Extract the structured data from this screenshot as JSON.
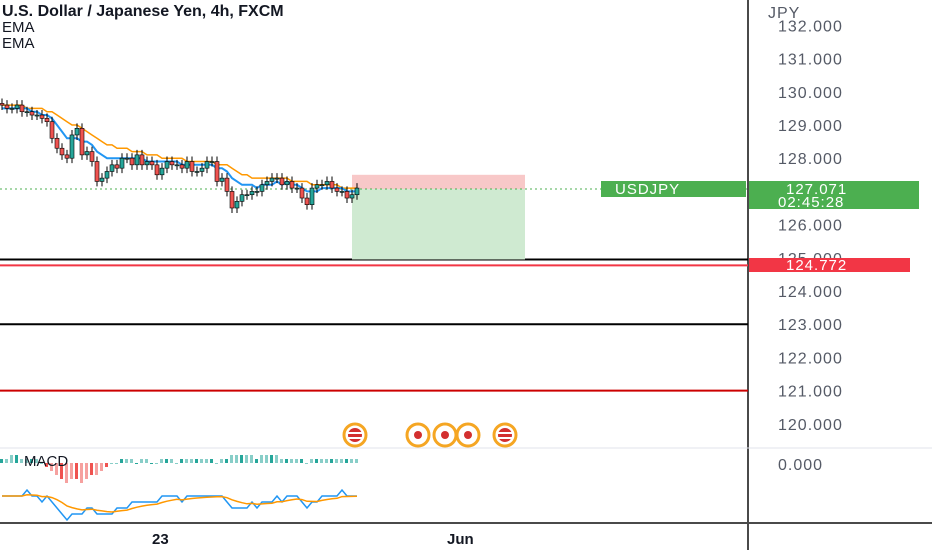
{
  "header": {
    "title": "U.S. Dollar / Japanese Yen, 4h, FXCM",
    "indicators": [
      "EMA",
      "EMA"
    ]
  },
  "price_axis": {
    "currency": "JPY",
    "ticks": [
      "132.000",
      "131.000",
      "130.000",
      "129.000",
      "128.000",
      "126.000",
      "125.000",
      "124.000",
      "123.000",
      "122.000",
      "121.000",
      "120.000"
    ],
    "macd_tick": "0.000"
  },
  "time_axis": {
    "labels": [
      "23",
      "Jun"
    ]
  },
  "current_price": {
    "symbol": "USDJPY",
    "price": "127.071",
    "countdown": "02:45:28",
    "color": "#4caf50"
  },
  "alert_line": {
    "price": "124.772",
    "color": "#f23645"
  },
  "macd": {
    "label": "MACD"
  },
  "chart_data": {
    "type": "candlestick",
    "symbol": "USD/JPY",
    "timeframe": "4h",
    "ylim": [
      119.5,
      132.3
    ],
    "horizontal_lines": [
      {
        "price": 124.95,
        "color": "#000000"
      },
      {
        "price": 124.772,
        "color": "#f23645"
      },
      {
        "price": 123.0,
        "color": "#000000"
      },
      {
        "price": 121.0,
        "color": "#cc0000"
      }
    ],
    "position": {
      "type": "short",
      "entry": 127.07,
      "stop": 127.5,
      "target": 124.95
    },
    "closes": [
      129.6,
      129.5,
      129.5,
      129.6,
      129.4,
      129.4,
      129.3,
      129.3,
      129.2,
      129.1,
      128.6,
      128.3,
      128.1,
      128.0,
      128.7,
      128.9,
      128.1,
      128.2,
      127.9,
      127.3,
      127.4,
      127.6,
      127.8,
      127.7,
      128.0,
      128.0,
      127.8,
      128.1,
      127.8,
      127.9,
      127.8,
      127.5,
      127.7,
      127.9,
      127.8,
      127.8,
      127.7,
      127.9,
      127.6,
      127.6,
      127.7,
      127.9,
      127.9,
      127.3,
      127.4,
      127.0,
      126.5,
      126.7,
      126.9,
      126.9,
      127.0,
      127.0,
      127.2,
      127.3,
      127.4,
      127.4,
      127.2,
      127.3,
      127.1,
      127.1,
      126.8,
      126.6,
      127.1,
      127.2,
      127.2,
      127.3,
      127.1,
      127.0,
      127.0,
      126.8,
      126.9,
      127.1
    ],
    "ema_fast": [
      129.5,
      129.5,
      129.5,
      129.5,
      129.5,
      129.5,
      129.4,
      129.4,
      129.3,
      129.3,
      129.2,
      129.0,
      128.8,
      128.6,
      128.6,
      128.6,
      128.5,
      128.5,
      128.4,
      128.2,
      128.1,
      128.0,
      128.0,
      128.0,
      128.0,
      128.0,
      128.0,
      128.0,
      128.0,
      127.9,
      127.9,
      127.9,
      127.9,
      127.9,
      127.9,
      127.9,
      127.8,
      127.8,
      127.8,
      127.8,
      127.8,
      127.8,
      127.8,
      127.7,
      127.7,
      127.6,
      127.4,
      127.3,
      127.2,
      127.2,
      127.2,
      127.1,
      127.2,
      127.2,
      127.2,
      127.3,
      127.2,
      127.3,
      127.2,
      127.2,
      127.1,
      127.0,
      127.0,
      127.0,
      127.1,
      127.1,
      127.1,
      127.1,
      127.1,
      127.0,
      127.0,
      127.0
    ],
    "ema_slow": [
      129.6,
      129.6,
      129.6,
      129.6,
      129.6,
      129.5,
      129.5,
      129.5,
      129.5,
      129.4,
      129.4,
      129.3,
      129.2,
      129.1,
      129.0,
      129.0,
      128.9,
      128.8,
      128.7,
      128.6,
      128.5,
      128.4,
      128.4,
      128.3,
      128.3,
      128.3,
      128.2,
      128.2,
      128.2,
      128.1,
      128.1,
      128.1,
      128.0,
      128.0,
      128.0,
      128.0,
      128.0,
      127.9,
      127.9,
      127.9,
      127.9,
      127.9,
      127.9,
      127.8,
      127.8,
      127.8,
      127.7,
      127.6,
      127.5,
      127.5,
      127.4,
      127.4,
      127.4,
      127.4,
      127.4,
      127.4,
      127.4,
      127.4,
      127.3,
      127.3,
      127.3,
      127.3,
      127.2,
      127.2,
      127.2,
      127.2,
      127.2,
      127.2,
      127.1,
      127.1,
      127.1,
      127.1
    ],
    "macd_hist": [
      1,
      1,
      2,
      2,
      1,
      1,
      1,
      1,
      0,
      -1,
      -2,
      -3,
      -4,
      -5,
      -4,
      -4,
      -5,
      -4,
      -3,
      -3,
      -2,
      -1,
      0,
      0,
      1,
      1,
      1,
      0,
      1,
      1,
      0,
      0,
      1,
      1,
      1,
      0,
      1,
      1,
      1,
      1,
      1,
      1,
      1,
      0,
      1,
      1,
      2,
      2,
      2,
      2,
      2,
      1,
      2,
      2,
      2,
      2,
      1,
      1,
      1,
      1,
      1,
      0,
      1,
      1,
      1,
      1,
      1,
      1,
      1,
      1,
      1,
      1
    ]
  }
}
